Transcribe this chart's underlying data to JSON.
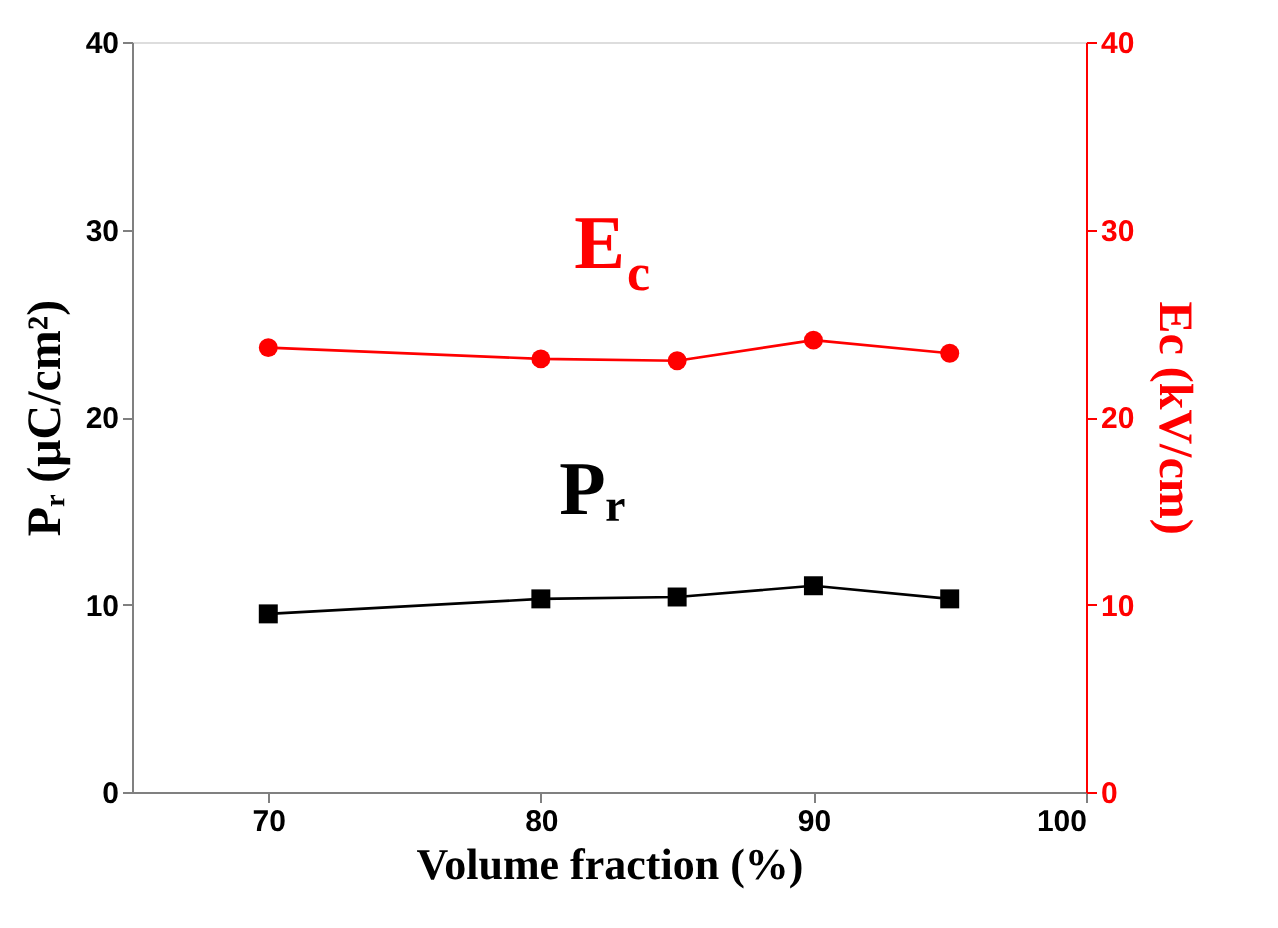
{
  "chart_data": {
    "type": "line",
    "xlabel": "Volume fraction (%)",
    "ylabel": "Pᵣ (μC/cm²)",
    "y2label": "Ec (kV/cm)",
    "x": [
      70,
      80,
      85,
      90,
      95
    ],
    "xlim": [
      65,
      100
    ],
    "xticks": [
      70,
      80,
      90,
      100
    ],
    "ylim": [
      0,
      40
    ],
    "yticks": [
      0,
      10,
      20,
      30,
      40
    ],
    "y2lim": [
      0,
      40
    ],
    "y2ticks": [
      0,
      10,
      20,
      30,
      40
    ],
    "grid": false,
    "series": [
      {
        "name": "Pᵣ",
        "color": "#000000",
        "marker": "square",
        "values": [
          9.5,
          10.3,
          10.4,
          11.0,
          10.3
        ]
      },
      {
        "name": "E$_{c}$",
        "color": "#ff0000",
        "marker": "circle",
        "axis": "y2",
        "values": [
          23.7,
          23.1,
          23.0,
          24.1,
          23.4
        ]
      }
    ]
  }
}
